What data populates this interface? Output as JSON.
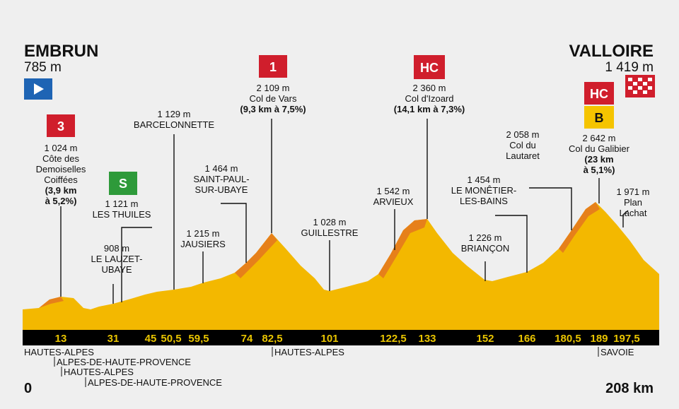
{
  "start": {
    "name": "EMBRUN",
    "altitude": "785 m",
    "distance": "0"
  },
  "finish": {
    "name": "VALLOIRE",
    "altitude": "1 419 m",
    "distance": "208 km"
  },
  "colors": {
    "profile": "#f3b800",
    "slope": "#e6801a",
    "axis": "#000000",
    "km_text": "#e8c400",
    "climb_flag": "#d01e2c",
    "sprint_flag": "#2e9a3a",
    "bonus_flag": "#f5c400",
    "start_flag": "#1e64b4"
  },
  "km_markers": [
    "13",
    "31",
    "45",
    "50,5",
    "59,5",
    "74",
    "82,5",
    "101",
    "122,5",
    "133",
    "152",
    "166",
    "180,5",
    "189",
    "197,5"
  ],
  "waypoints": [
    {
      "id": "cote-des-demoiselles-coiffees",
      "lines": [
        "1 024 m",
        "Côte des",
        "Demoiselles",
        "Coiffées"
      ],
      "detail": [
        "(3,9 km",
        "à 5,2%)"
      ],
      "category": "3"
    },
    {
      "id": "les-thuiles",
      "lines": [
        "1 121 m",
        "LES THUILES"
      ],
      "category": "S"
    },
    {
      "id": "le-lauzet-ubaye",
      "lines": [
        "908 m",
        "LE LAUZET-",
        "UBAYE"
      ]
    },
    {
      "id": "barcelonnette",
      "lines": [
        "1 129 m",
        "BARCELONNETTE"
      ]
    },
    {
      "id": "jausiers",
      "lines": [
        "1 215 m",
        "JAUSIERS"
      ]
    },
    {
      "id": "saint-paul-sur-ubaye",
      "lines": [
        "1 464 m",
        "SAINT-PAUL-",
        "SUR-UBAYE"
      ]
    },
    {
      "id": "col-de-vars",
      "lines": [
        "2 109 m",
        "Col de Vars"
      ],
      "detail": [
        "(9,3 km à 7,5%)"
      ],
      "category": "1"
    },
    {
      "id": "guillestre",
      "lines": [
        "1 028 m",
        "GUILLESTRE"
      ]
    },
    {
      "id": "arvieux",
      "lines": [
        "1 542 m",
        "ARVIEUX"
      ]
    },
    {
      "id": "col-d-izoard",
      "lines": [
        "2 360 m",
        "Col d'Izoard"
      ],
      "detail": [
        "(14,1 km à 7,3%)"
      ],
      "category": "HC"
    },
    {
      "id": "briancon",
      "lines": [
        "1 226 m",
        "BRIANÇON"
      ]
    },
    {
      "id": "le-monetier-les-bains",
      "lines": [
        "1 454 m",
        "LE MONÊTIER-",
        "LES-BAINS"
      ]
    },
    {
      "id": "col-du-lautaret",
      "lines": [
        "2 058 m",
        "Col du",
        "Lautaret"
      ]
    },
    {
      "id": "col-du-galibier",
      "lines": [
        "2 642 m",
        "Col du Galibier"
      ],
      "detail": [
        "(23 km",
        "à 5,1%)"
      ],
      "category": "HC",
      "bonus": "B"
    },
    {
      "id": "plan-lachat",
      "lines": [
        "1 971 m",
        "Plan",
        "Lachat"
      ]
    }
  ],
  "departments": [
    {
      "id": "hautes-alpes-1",
      "label": "HAUTES-ALPES"
    },
    {
      "id": "alpes-de-haute-provence-1",
      "label": "ALPES-DE-HAUTE-PROVENCE"
    },
    {
      "id": "hautes-alpes-2",
      "label": "HAUTES-ALPES"
    },
    {
      "id": "alpes-de-haute-provence-2",
      "label": "ALPES-DE-HAUTE-PROVENCE"
    },
    {
      "id": "hautes-alpes-3",
      "label": "HAUTES-ALPES"
    },
    {
      "id": "savoie",
      "label": "SAVOIE"
    }
  ]
}
